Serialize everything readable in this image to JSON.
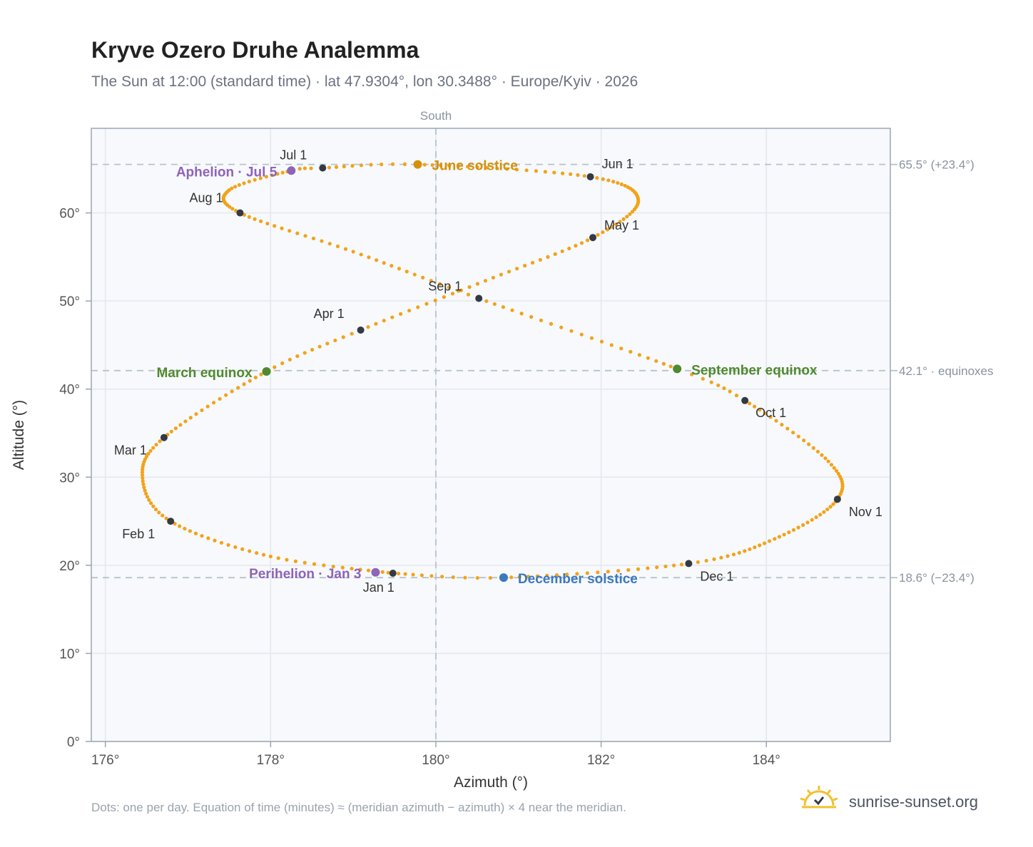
{
  "header": {
    "title": "Kryve Ozero Druhe Analemma",
    "subtitle": "The Sun at 12:00 (standard time) · lat 47.9304°, lon 30.3488° · Europe/Kyiv · 2026"
  },
  "footer": {
    "note": "Dots: one per day. Equation of time (minutes) ≈ (meridian azimuth − azimuth) × 4 near the meridian.",
    "brand": "sunrise-sunset.org"
  },
  "colors": {
    "analemma": "#f2a31a",
    "month_marker": "#333a44",
    "june_solstice": "#d4920a",
    "december_solstice": "#3a78c2",
    "equinox": "#4f8a2e",
    "apsis": "#8e63b8",
    "reference_line": "#b8c2cc",
    "plot_background": "#f7f9fc"
  },
  "chart_data": {
    "type": "scatter",
    "xlabel": "Azimuth (°)",
    "ylabel": "Altitude (°)",
    "xlim": [
      175.83,
      185.5
    ],
    "ylim": [
      0,
      69.6
    ],
    "xticks": [
      176,
      178,
      180,
      182,
      184
    ],
    "xtick_labels": [
      "176°",
      "178°",
      "180°",
      "182°",
      "184°"
    ],
    "yticks": [
      0,
      10,
      20,
      30,
      40,
      50,
      60
    ],
    "ytick_labels": [
      "0°",
      "10°",
      "20°",
      "30°",
      "40°",
      "50°",
      "60°"
    ],
    "grid": true,
    "meridian": {
      "azimuth": 180,
      "label": "South"
    },
    "reference_lines": [
      {
        "altitude": 65.5,
        "label": "65.5° (+23.4°)"
      },
      {
        "altitude": 42.1,
        "label": "42.1° · equinoxes"
      },
      {
        "altitude": 18.6,
        "label": "18.6° (−23.4°)"
      }
    ],
    "month_markers": [
      {
        "label": "Jan 1",
        "azimuth": 179.48,
        "altitude": 19.1
      },
      {
        "label": "Feb 1",
        "azimuth": 176.79,
        "altitude": 25.0
      },
      {
        "label": "Mar 1",
        "azimuth": 176.71,
        "altitude": 34.5
      },
      {
        "label": "Apr 1",
        "azimuth": 179.09,
        "altitude": 46.7
      },
      {
        "label": "May 1",
        "azimuth": 181.9,
        "altitude": 57.2
      },
      {
        "label": "Jun 1",
        "azimuth": 181.87,
        "altitude": 64.1
      },
      {
        "label": "Jul 1",
        "azimuth": 178.63,
        "altitude": 65.1
      },
      {
        "label": "Aug 1",
        "azimuth": 177.63,
        "altitude": 60.0
      },
      {
        "label": "Sep 1",
        "azimuth": 180.52,
        "altitude": 50.3
      },
      {
        "label": "Oct 1",
        "azimuth": 183.74,
        "altitude": 38.7
      },
      {
        "label": "Nov 1",
        "azimuth": 184.86,
        "altitude": 27.5
      },
      {
        "label": "Dec 1",
        "azimuth": 183.06,
        "altitude": 20.2
      }
    ],
    "events": [
      {
        "label": "June solstice",
        "azimuth": 179.78,
        "altitude": 65.5,
        "color_key": "june_solstice"
      },
      {
        "label": "December solstice",
        "azimuth": 180.82,
        "altitude": 18.6,
        "color_key": "december_solstice"
      },
      {
        "label": "March equinox",
        "azimuth": 177.95,
        "altitude": 42.0,
        "color_key": "equinox"
      },
      {
        "label": "September equinox",
        "azimuth": 182.92,
        "altitude": 42.3,
        "color_key": "equinox"
      },
      {
        "label": "Aphelion · Jul 5",
        "azimuth": 178.25,
        "altitude": 64.8,
        "color_key": "apsis"
      },
      {
        "label": "Perihelion · Jan 3",
        "azimuth": 179.27,
        "altitude": 19.2,
        "color_key": "apsis"
      }
    ],
    "analemma": {
      "daily_points": 365,
      "keyframes": [
        {
          "day": 0,
          "azimuth": 179.48,
          "altitude": 19.1
        },
        {
          "day": 15,
          "azimuth": 178.0,
          "altitude": 21.0
        },
        {
          "day": 31,
          "azimuth": 176.79,
          "altitude": 25.0
        },
        {
          "day": 45,
          "azimuth": 176.45,
          "altitude": 29.9
        },
        {
          "day": 59,
          "azimuth": 176.71,
          "altitude": 34.5
        },
        {
          "day": 78,
          "azimuth": 177.95,
          "altitude": 42.0
        },
        {
          "day": 90,
          "azimuth": 179.09,
          "altitude": 46.7
        },
        {
          "day": 105,
          "azimuth": 180.6,
          "altitude": 52.3
        },
        {
          "day": 120,
          "azimuth": 181.9,
          "altitude": 57.2
        },
        {
          "day": 135,
          "azimuth": 182.45,
          "altitude": 61.4
        },
        {
          "day": 151,
          "azimuth": 181.87,
          "altitude": 64.1
        },
        {
          "day": 171,
          "azimuth": 179.78,
          "altitude": 65.5
        },
        {
          "day": 181,
          "azimuth": 178.63,
          "altitude": 65.1
        },
        {
          "day": 185,
          "azimuth": 178.25,
          "altitude": 64.8
        },
        {
          "day": 198,
          "azimuth": 177.5,
          "altitude": 62.6
        },
        {
          "day": 212,
          "azimuth": 177.63,
          "altitude": 60.0
        },
        {
          "day": 228,
          "azimuth": 179.0,
          "altitude": 55.6
        },
        {
          "day": 243,
          "azimuth": 180.52,
          "altitude": 50.3
        },
        {
          "day": 265,
          "azimuth": 182.92,
          "altitude": 42.3
        },
        {
          "day": 273,
          "azimuth": 183.74,
          "altitude": 38.7
        },
        {
          "day": 290,
          "azimuth": 184.75,
          "altitude": 31.8
        },
        {
          "day": 304,
          "azimuth": 184.86,
          "altitude": 27.5
        },
        {
          "day": 320,
          "azimuth": 184.1,
          "altitude": 23.0
        },
        {
          "day": 334,
          "azimuth": 183.06,
          "altitude": 20.2
        },
        {
          "day": 354,
          "azimuth": 180.82,
          "altitude": 18.6
        },
        {
          "day": 365,
          "azimuth": 179.48,
          "altitude": 19.1
        }
      ]
    }
  }
}
